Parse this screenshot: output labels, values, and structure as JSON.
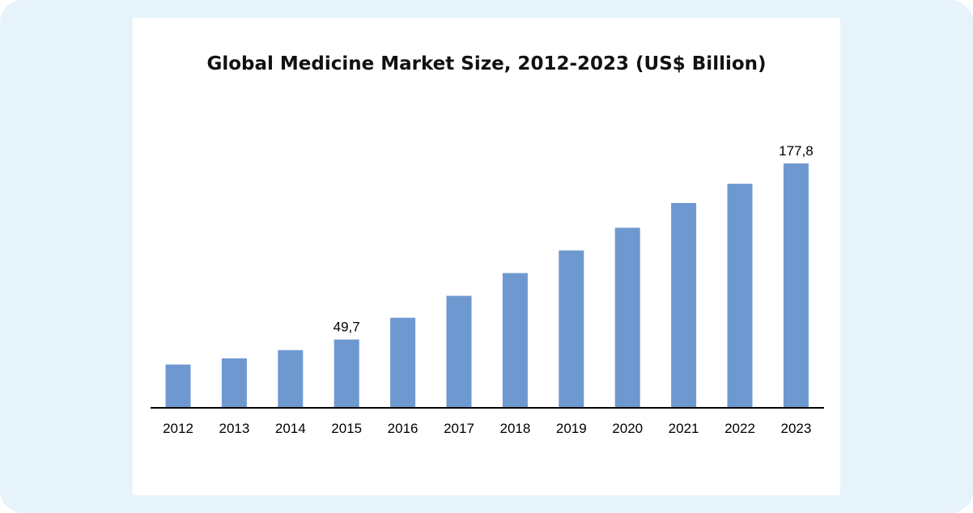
{
  "chart_data": {
    "type": "bar",
    "title": "Global Medicine Market Size, 2012-2023 (US$ Billion)",
    "xlabel": "",
    "ylabel": "",
    "categories": [
      "2012",
      "2013",
      "2014",
      "2015",
      "2016",
      "2017",
      "2018",
      "2019",
      "2020",
      "2021",
      "2022",
      "2023"
    ],
    "values": [
      31.5,
      36.0,
      42.0,
      49.7,
      65.5,
      81.5,
      98.0,
      114.5,
      131.0,
      149.0,
      163.0,
      177.8
    ],
    "data_labels": [
      {
        "category": "2015",
        "text": "49,7"
      },
      {
        "category": "2023",
        "text": "177,8"
      }
    ],
    "ylim": [
      0,
      177.8
    ],
    "grid": false,
    "legend": "none",
    "colors": {
      "bar": "#6e98d0",
      "axis": "#000000"
    }
  }
}
